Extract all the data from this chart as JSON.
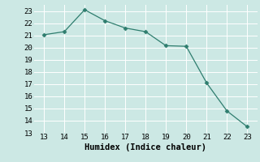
{
  "x": [
    13,
    14,
    15,
    16,
    17,
    18,
    19,
    20,
    21,
    22,
    23
  ],
  "y": [
    21.05,
    21.3,
    23.1,
    22.2,
    21.6,
    21.3,
    20.15,
    20.1,
    17.1,
    14.8,
    13.5
  ],
  "xlabel": "Humidex (Indice chaleur)",
  "xlim": [
    12.5,
    23.5
  ],
  "ylim": [
    13,
    23.5
  ],
  "xticks": [
    13,
    14,
    15,
    16,
    17,
    18,
    19,
    20,
    21,
    22,
    23
  ],
  "yticks": [
    13,
    14,
    15,
    16,
    17,
    18,
    19,
    20,
    21,
    22,
    23
  ],
  "line_color": "#2e7d6e",
  "marker_color": "#2e7d6e",
  "bg_plot": "#cce8e4",
  "bg_fig": "#cce8e4",
  "grid_color": "#ffffff",
  "tick_fontsize": 6.5,
  "label_fontsize": 7.5
}
